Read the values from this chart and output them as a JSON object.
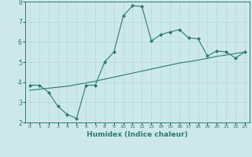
{
  "title": "",
  "xlabel": "Humidex (Indice chaleur)",
  "ylabel": "",
  "background_color": "#cce8e8",
  "line_color": "#2d7a6e",
  "xlim": [
    -0.5,
    23.5
  ],
  "ylim": [
    2,
    8
  ],
  "xticks": [
    0,
    1,
    2,
    3,
    4,
    5,
    6,
    7,
    8,
    9,
    10,
    11,
    12,
    13,
    14,
    15,
    16,
    17,
    18,
    19,
    20,
    21,
    22,
    23
  ],
  "yticks": [
    2,
    3,
    4,
    5,
    6,
    7,
    8
  ],
  "curve1_x": [
    0,
    1,
    2,
    3,
    4,
    5,
    6,
    7,
    8,
    9,
    10,
    11,
    12,
    13,
    14,
    15,
    16,
    17,
    18,
    19,
    20,
    21,
    22,
    23
  ],
  "curve1_y": [
    3.85,
    3.85,
    3.5,
    2.8,
    2.4,
    2.2,
    3.85,
    3.85,
    5.0,
    5.5,
    7.3,
    7.8,
    7.75,
    6.05,
    6.35,
    6.5,
    6.6,
    6.2,
    6.15,
    5.3,
    5.55,
    5.5,
    5.2,
    5.5
  ],
  "curve2_x": [
    0,
    1,
    2,
    3,
    4,
    5,
    6,
    7,
    8,
    9,
    10,
    11,
    12,
    13,
    14,
    15,
    16,
    17,
    18,
    19,
    20,
    21,
    22,
    23
  ],
  "curve2_y": [
    3.6,
    3.65,
    3.7,
    3.75,
    3.8,
    3.88,
    3.96,
    4.05,
    4.15,
    4.25,
    4.35,
    4.45,
    4.55,
    4.65,
    4.75,
    4.85,
    4.95,
    5.02,
    5.1,
    5.18,
    5.28,
    5.35,
    5.42,
    5.5
  ]
}
